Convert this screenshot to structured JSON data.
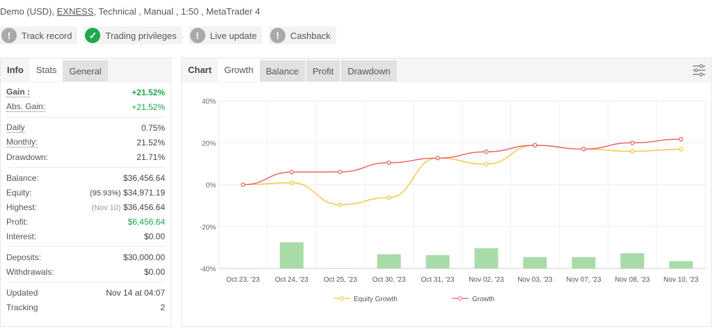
{
  "header": {
    "account_type": "Demo (USD),",
    "broker": "EXNESS",
    "rest": ", Technical , Manual , 1:50 , MetaTrader 4"
  },
  "badges": [
    {
      "label": "Track record",
      "icon": "exclamation-icon",
      "status": "unverified"
    },
    {
      "label": "Trading privileges",
      "icon": "check-icon",
      "status": "verified"
    },
    {
      "label": "Live update",
      "icon": "exclamation-icon",
      "status": "unverified"
    },
    {
      "label": "Cashback",
      "icon": "exclamation-icon",
      "status": "unverified"
    }
  ],
  "left_tabs": [
    "Info",
    "Stats",
    "General"
  ],
  "stats": {
    "gain": {
      "label": "Gain :",
      "value": "+21.52%"
    },
    "abs_gain": {
      "label": "Abs. Gain:",
      "value": "+21.52%"
    },
    "daily": {
      "label": "Daily",
      "value": "0.75%"
    },
    "monthly": {
      "label": "Monthly:",
      "value": "21.52%"
    },
    "drawdown": {
      "label": "Drawdown:",
      "value": "21.71%"
    },
    "balance": {
      "label": "Balance:",
      "value": "$36,456.64"
    },
    "equity": {
      "label": "Equity:",
      "note": "(95.93%)",
      "value": "$34,971.19"
    },
    "highest": {
      "label": "Highest:",
      "note": "(Nov 10)",
      "value": "$36,456.64"
    },
    "profit": {
      "label": "Profit:",
      "value": "$6,456.64"
    },
    "interest": {
      "label": "Interest:",
      "value": "$0.00"
    },
    "deposits": {
      "label": "Deposits:",
      "value": "$30,000.00"
    },
    "withdrawals": {
      "label": "Withdrawals:",
      "value": "$0.00"
    },
    "updated": {
      "label": "Updated",
      "value": "Nov 14 at 04:07"
    },
    "tracking": {
      "label": "Tracking",
      "value": "2"
    }
  },
  "chart_tabs": [
    "Chart",
    "Growth",
    "Balance",
    "Profit",
    "Drawdown"
  ],
  "colors": {
    "green": "#1aa64a",
    "growth": "#e8646a",
    "equity": "#f5c842",
    "bars": "#a9dba9"
  },
  "chart_data": {
    "type": "line",
    "categories": [
      "Oct 23, '23",
      "Oct 24, '23",
      "Oct 25, '23",
      "Oct 30, '23",
      "Oct 31, '23",
      "Nov 02, '23",
      "Nov 03, '23",
      "Nov 07, '23",
      "Nov 08, '23",
      "Nov 10, '23"
    ],
    "yticks": [
      "40%",
      "20%",
      "0%",
      "-20%",
      "-40%"
    ],
    "ylim": [
      -40,
      40
    ],
    "grid": true,
    "legend": "bottom",
    "series": [
      {
        "name": "Equity Growth",
        "values": [
          0,
          0.9,
          -9.6,
          -6.2,
          12.7,
          9.8,
          18.8,
          17.0,
          15.9,
          16.9
        ]
      },
      {
        "name": "Growth",
        "values": [
          0,
          6.0,
          6.1,
          10.5,
          12.7,
          15.7,
          18.8,
          17.0,
          20.0,
          21.7
        ]
      }
    ],
    "bar_tops_axis_units": [
      -40,
      -27.5,
      -39.8,
      -33.2,
      -33.6,
      -30.3,
      -34.6,
      -34.6,
      -32.7,
      -36.5
    ]
  }
}
